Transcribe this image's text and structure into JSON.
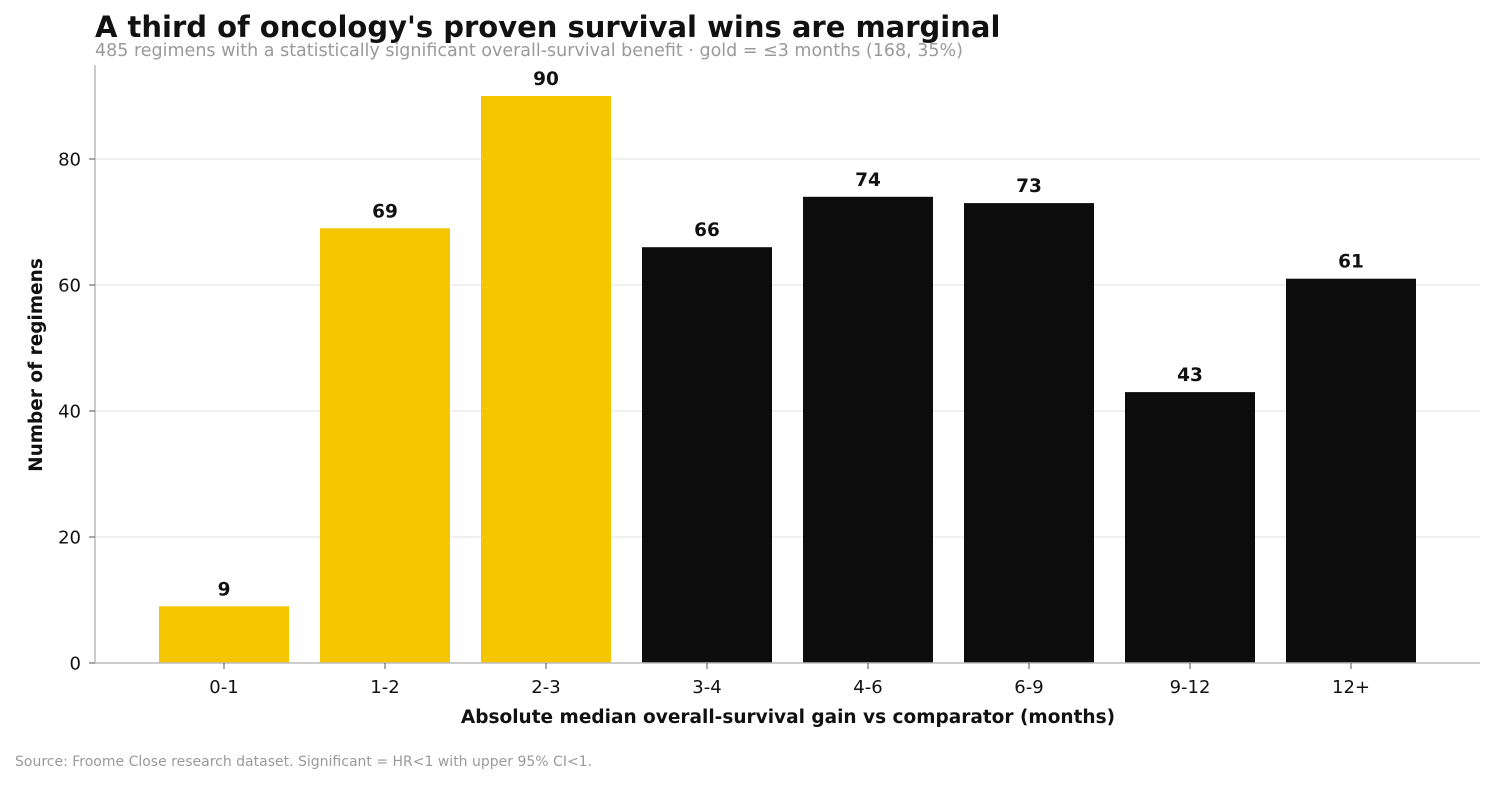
{
  "title": "A third of oncology's proven survival wins are marginal",
  "subtitle": "485 regimens with a statistically significant overall-survival benefit · gold = ≤3 months (168, 35%)",
  "source": "Source: Froome Close research dataset. Significant = HR<1 with upper 95% CI<1.",
  "colors": {
    "highlight": "#F5C500",
    "default": "#0C0C0C",
    "grid": "#E6E6E6",
    "axis": "#BBBBBB"
  },
  "chart_data": {
    "type": "bar",
    "title": "A third of oncology's proven survival wins are marginal",
    "subtitle": "485 regimens with a statistically significant overall-survival benefit · gold = ≤3 months (168, 35%)",
    "xlabel": "Absolute median overall-survival gain vs comparator (months)",
    "ylabel": "Number of regimens",
    "categories": [
      "0-1",
      "1-2",
      "2-3",
      "3-4",
      "4-6",
      "6-9",
      "9-12",
      "12+"
    ],
    "values": [
      9,
      69,
      90,
      66,
      74,
      73,
      43,
      61
    ],
    "highlighted": [
      true,
      true,
      true,
      false,
      false,
      false,
      false,
      false
    ],
    "ylim": [
      0,
      95
    ],
    "yticks": [
      0,
      20,
      40,
      60,
      80
    ],
    "grid": "horizontal",
    "data_labels": true
  }
}
